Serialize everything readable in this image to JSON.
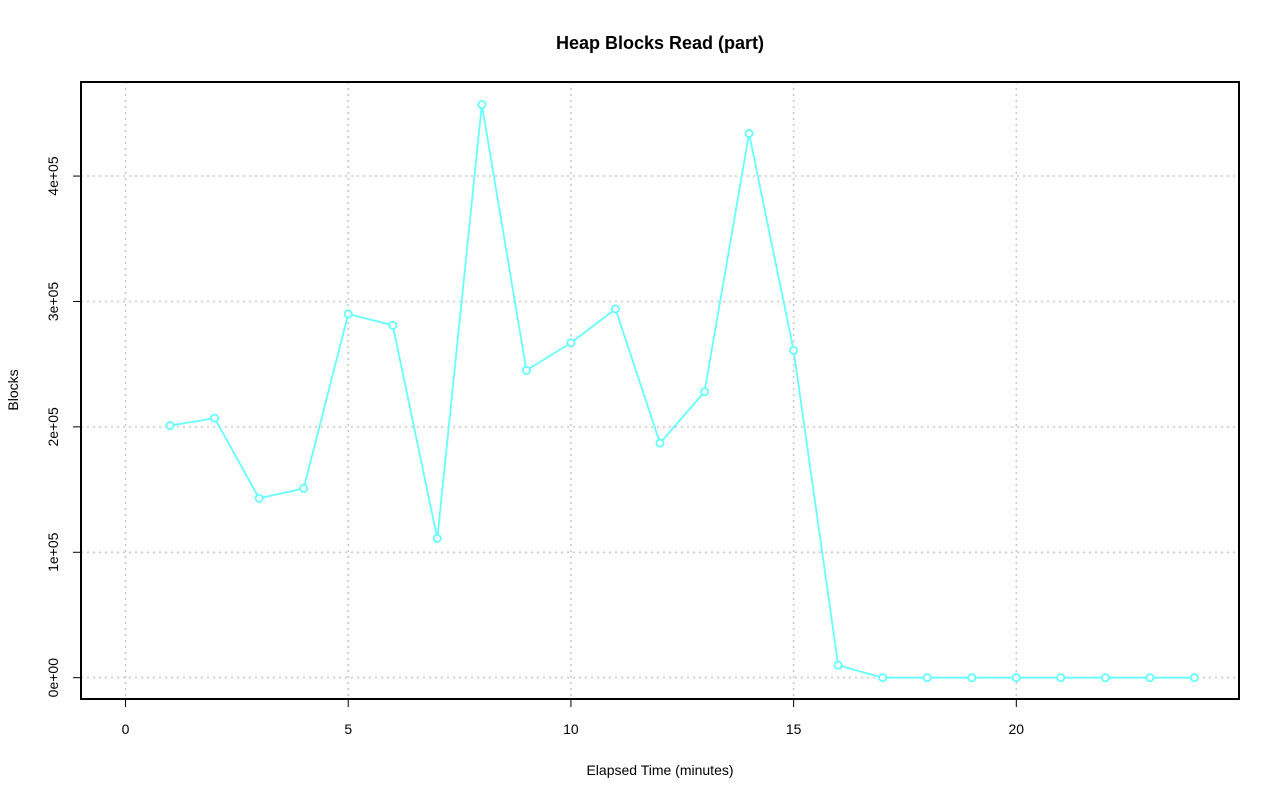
{
  "chart_data": {
    "type": "line",
    "title": "Heap Blocks Read (part)",
    "xlabel": "Elapsed Time (minutes)",
    "ylabel": "Blocks",
    "xlim": [
      -1,
      25
    ],
    "ylim": [
      -17000,
      475000
    ],
    "x_ticks": [
      0,
      5,
      10,
      15,
      20
    ],
    "x_tick_labels": [
      "0",
      "5",
      "10",
      "15",
      "20"
    ],
    "y_ticks": [
      0,
      100000,
      200000,
      300000,
      400000
    ],
    "y_tick_labels": [
      "0e+00",
      "1e+05",
      "2e+05",
      "3e+05",
      "4e+05"
    ],
    "grid": true,
    "color": "#66ffff",
    "series": [
      {
        "x": [
          1,
          2,
          3,
          4,
          5,
          6,
          7,
          8,
          9,
          10,
          11,
          12,
          13,
          14,
          15,
          16,
          17,
          18,
          19,
          20,
          21,
          22,
          23,
          24
        ],
        "values": [
          201000,
          207000,
          143000,
          151000,
          290000,
          281000,
          111000,
          457000,
          245000,
          267000,
          294000,
          187000,
          228000,
          434000,
          261000,
          10000,
          0,
          0,
          0,
          0,
          0,
          0,
          0,
          0
        ]
      }
    ]
  }
}
